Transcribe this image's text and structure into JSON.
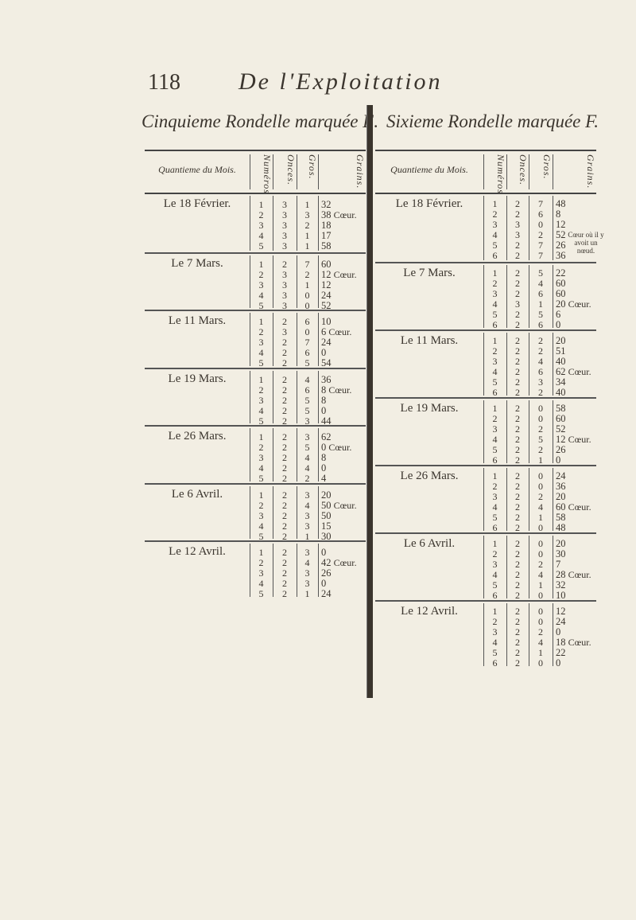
{
  "page": {
    "page_number": "118",
    "running_title": "De l'Exploitation"
  },
  "tables": [
    {
      "id": "E",
      "title": "Cinquieme Rondelle marquée E.",
      "headers": {
        "date": "Quantieme du Mois.",
        "num": "Numéros",
        "onces": "Onces.",
        "gros": "Gros.",
        "grains": "Grains."
      },
      "groups": [
        {
          "date": "Le 18 Février.",
          "rows": [
            [
              "1",
              "3",
              "1",
              "32",
              ""
            ],
            [
              "2",
              "3",
              "3",
              "38",
              "Cœur."
            ],
            [
              "3",
              "3",
              "2",
              "18",
              ""
            ],
            [
              "4",
              "3",
              "1",
              "17",
              ""
            ],
            [
              "5",
              "3",
              "1",
              "58",
              ""
            ]
          ]
        },
        {
          "date": "Le 7 Mars.",
          "rows": [
            [
              "1",
              "2",
              "7",
              "60",
              ""
            ],
            [
              "2",
              "3",
              "2",
              "12",
              "Cœur."
            ],
            [
              "3",
              "3",
              "1",
              "12",
              ""
            ],
            [
              "4",
              "3",
              "0",
              "24",
              ""
            ],
            [
              "5",
              "3",
              "0",
              "52",
              ""
            ]
          ]
        },
        {
          "date": "Le 11 Mars.",
          "rows": [
            [
              "1",
              "2",
              "6",
              "10",
              ""
            ],
            [
              "2",
              "3",
              "0",
              "6",
              "Cœur."
            ],
            [
              "3",
              "2",
              "7",
              "24",
              ""
            ],
            [
              "4",
              "2",
              "6",
              "0",
              ""
            ],
            [
              "5",
              "2",
              "5",
              "54",
              ""
            ]
          ]
        },
        {
          "date": "Le 19 Mars.",
          "rows": [
            [
              "1",
              "2",
              "4",
              "36",
              ""
            ],
            [
              "2",
              "2",
              "6",
              "8",
              "Cœur."
            ],
            [
              "3",
              "2",
              "5",
              "8",
              ""
            ],
            [
              "4",
              "2",
              "5",
              "0",
              ""
            ],
            [
              "5",
              "2",
              "3",
              "44",
              ""
            ]
          ]
        },
        {
          "date": "Le 26 Mars.",
          "rows": [
            [
              "1",
              "2",
              "3",
              "62",
              ""
            ],
            [
              "2",
              "2",
              "5",
              "0",
              "Cœur."
            ],
            [
              "3",
              "2",
              "4",
              "8",
              ""
            ],
            [
              "4",
              "2",
              "4",
              "0",
              ""
            ],
            [
              "5",
              "2",
              "2",
              "4",
              ""
            ]
          ]
        },
        {
          "date": "Le 6 Avril.",
          "rows": [
            [
              "1",
              "2",
              "3",
              "20",
              ""
            ],
            [
              "2",
              "2",
              "4",
              "50",
              "Cœur."
            ],
            [
              "3",
              "2",
              "3",
              "50",
              ""
            ],
            [
              "4",
              "2",
              "3",
              "15",
              ""
            ],
            [
              "5",
              "2",
              "1",
              "30",
              ""
            ]
          ]
        },
        {
          "date": "Le 12 Avril.",
          "rows": [
            [
              "1",
              "2",
              "3",
              "0",
              ""
            ],
            [
              "2",
              "2",
              "4",
              "42",
              "Cœur."
            ],
            [
              "3",
              "2",
              "3",
              "26",
              ""
            ],
            [
              "4",
              "2",
              "3",
              "0",
              ""
            ],
            [
              "5",
              "2",
              "1",
              "24",
              ""
            ]
          ]
        }
      ]
    },
    {
      "id": "F",
      "title": "Sixieme Rondelle marquée F.",
      "headers": {
        "date": "Quantieme du Mois.",
        "num": "Numéros",
        "onces": "Onces.",
        "gros": "Gros.",
        "grains": "Grains."
      },
      "groups": [
        {
          "date": "Le 18 Février.",
          "rows": [
            [
              "1",
              "2",
              "7",
              "48",
              ""
            ],
            [
              "2",
              "2",
              "6",
              "8",
              ""
            ],
            [
              "3",
              "3",
              "0",
              "12",
              ""
            ],
            [
              "4",
              "3",
              "2",
              "52",
              "Cœur où il y avoit un nœud."
            ],
            [
              "5",
              "2",
              "7",
              "26",
              ""
            ],
            [
              "6",
              "2",
              "7",
              "36",
              ""
            ]
          ]
        },
        {
          "date": "Le 7 Mars.",
          "rows": [
            [
              "1",
              "2",
              "5",
              "22",
              ""
            ],
            [
              "2",
              "2",
              "4",
              "60",
              ""
            ],
            [
              "3",
              "2",
              "6",
              "60",
              ""
            ],
            [
              "4",
              "3",
              "1",
              "20",
              "Cœur."
            ],
            [
              "5",
              "2",
              "5",
              "6",
              ""
            ],
            [
              "6",
              "2",
              "6",
              "0",
              ""
            ]
          ]
        },
        {
          "date": "Le 11 Mars.",
          "rows": [
            [
              "1",
              "2",
              "2",
              "20",
              ""
            ],
            [
              "2",
              "2",
              "2",
              "51",
              ""
            ],
            [
              "3",
              "2",
              "4",
              "40",
              ""
            ],
            [
              "4",
              "2",
              "6",
              "62",
              "Cœur."
            ],
            [
              "5",
              "2",
              "3",
              "34",
              ""
            ],
            [
              "6",
              "2",
              "2",
              "40",
              ""
            ]
          ]
        },
        {
          "date": "Le 19 Mars.",
          "rows": [
            [
              "1",
              "2",
              "0",
              "58",
              ""
            ],
            [
              "2",
              "2",
              "0",
              "60",
              ""
            ],
            [
              "3",
              "2",
              "2",
              "52",
              ""
            ],
            [
              "4",
              "2",
              "5",
              "12",
              "Cœur."
            ],
            [
              "5",
              "2",
              "2",
              "26",
              ""
            ],
            [
              "6",
              "2",
              "1",
              "0",
              ""
            ]
          ]
        },
        {
          "date": "Le 26 Mars.",
          "rows": [
            [
              "1",
              "2",
              "0",
              "24",
              ""
            ],
            [
              "2",
              "2",
              "0",
              "36",
              ""
            ],
            [
              "3",
              "2",
              "2",
              "20",
              ""
            ],
            [
              "4",
              "2",
              "4",
              "60",
              "Cœur."
            ],
            [
              "5",
              "2",
              "1",
              "58",
              ""
            ],
            [
              "6",
              "2",
              "0",
              "48",
              ""
            ]
          ]
        },
        {
          "date": "Le 6 Avril.",
          "rows": [
            [
              "1",
              "2",
              "0",
              "20",
              ""
            ],
            [
              "2",
              "2",
              "0",
              "30",
              ""
            ],
            [
              "3",
              "2",
              "2",
              "7",
              ""
            ],
            [
              "4",
              "2",
              "4",
              "28",
              "Cœur."
            ],
            [
              "5",
              "2",
              "1",
              "32",
              ""
            ],
            [
              "6",
              "2",
              "0",
              "10",
              ""
            ]
          ]
        },
        {
          "date": "Le 12 Avril.",
          "rows": [
            [
              "1",
              "2",
              "0",
              "12",
              ""
            ],
            [
              "2",
              "2",
              "0",
              "24",
              ""
            ],
            [
              "3",
              "2",
              "2",
              "0",
              ""
            ],
            [
              "4",
              "2",
              "4",
              "18",
              "Cœur."
            ],
            [
              "5",
              "2",
              "1",
              "22",
              ""
            ],
            [
              "6",
              "2",
              "0",
              "0",
              ""
            ]
          ]
        }
      ]
    }
  ]
}
